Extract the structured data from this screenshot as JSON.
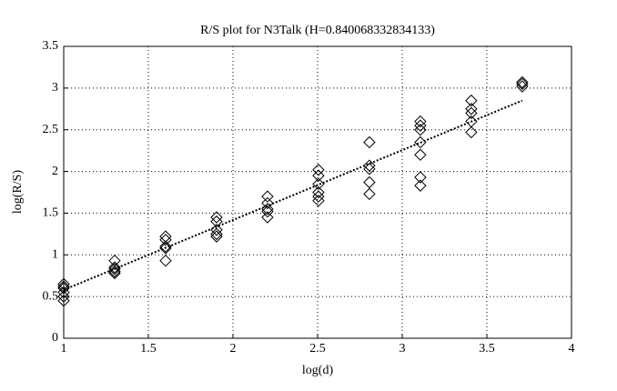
{
  "chart_data": {
    "type": "scatter",
    "title": "R/S plot for N3Talk (H=0.840068332834133)",
    "x_label": "log(d)",
    "y_label": "log(R/S)",
    "x": [
      1,
      1,
      1,
      1,
      1,
      1,
      1.301,
      1.301,
      1.301,
      1.301,
      1.301,
      1.602,
      1.602,
      1.602,
      1.602,
      1.602,
      1.903,
      1.903,
      1.903,
      1.903,
      1.903,
      2.204,
      2.204,
      2.204,
      2.204,
      2.204,
      2.505,
      2.505,
      2.505,
      2.505,
      2.505,
      2.505,
      2.806,
      2.806,
      2.806,
      2.806,
      2.806,
      3.107,
      3.107,
      3.107,
      3.107,
      3.107,
      3.107,
      3.107,
      3.408,
      3.408,
      3.408,
      3.408,
      3.408,
      3.709,
      3.709,
      3.709
    ],
    "values": [
      0.65,
      0.62,
      0.6,
      0.55,
      0.5,
      0.45,
      0.93,
      0.85,
      0.83,
      0.8,
      0.78,
      1.22,
      1.18,
      1.1,
      1.08,
      0.93,
      1.45,
      1.4,
      1.3,
      1.25,
      1.22,
      1.7,
      1.62,
      1.55,
      1.52,
      1.45,
      2.02,
      1.95,
      1.85,
      1.75,
      1.7,
      1.65,
      2.35,
      2.07,
      2.03,
      1.87,
      1.73,
      2.6,
      2.55,
      2.5,
      2.35,
      2.2,
      1.93,
      1.83,
      2.85,
      2.75,
      2.7,
      2.6,
      2.47,
      3.07,
      3.05,
      3.02
    ],
    "color": "#000000",
    "fit_line": {
      "x": [
        1,
        3.709
      ],
      "values": [
        0.58,
        2.85
      ],
      "color": "#000000"
    },
    "xlim": [
      1,
      4
    ],
    "xticks": [
      1,
      1.5,
      2,
      2.5,
      3,
      3.5,
      4
    ],
    "ylim": [
      0,
      3.5
    ],
    "yticks": [
      0,
      0.5,
      1,
      1.5,
      2,
      2.5,
      3,
      3.5
    ],
    "grid": true
  }
}
